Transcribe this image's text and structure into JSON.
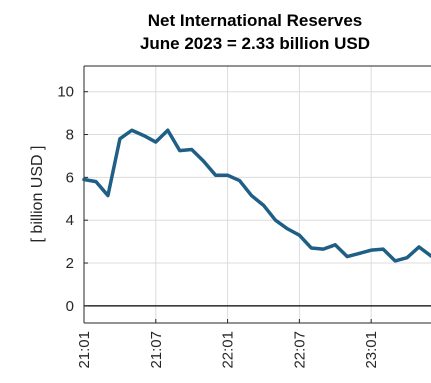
{
  "chart_data": {
    "type": "line",
    "title": "Net International Reserves",
    "subtitle": "June 2023 = 2.33 billion USD",
    "xlabel": "",
    "ylabel": "[ billion USD ]",
    "ylim": [
      -0.8,
      11.2
    ],
    "yticks": [
      0,
      2,
      4,
      6,
      8,
      10
    ],
    "x_tick_labels": [
      "21:01",
      "21:07",
      "22:01",
      "22:07",
      "23:01"
    ],
    "x_tick_indices": [
      0,
      6,
      12,
      18,
      24
    ],
    "x_range_index": [
      0,
      29
    ],
    "grid": true,
    "zero_line": true,
    "line_color": "#1f5f86",
    "series": [
      {
        "x": [
          "21:01",
          "21:02",
          "21:03",
          "21:04",
          "21:05",
          "21:06",
          "21:07",
          "21:08",
          "21:09",
          "21:10",
          "21:11",
          "21:12",
          "22:01",
          "22:02",
          "22:03",
          "22:04",
          "22:05",
          "22:06",
          "22:07",
          "22:08",
          "22:09",
          "22:10",
          "22:11",
          "22:12",
          "23:01",
          "23:02",
          "23:03",
          "23:04",
          "23:05",
          "23:06"
        ],
        "values": [
          5.9,
          5.8,
          5.15,
          7.8,
          8.2,
          7.95,
          7.65,
          8.2,
          7.25,
          7.3,
          6.75,
          6.1,
          6.1,
          5.85,
          5.15,
          4.7,
          4.0,
          3.6,
          3.3,
          2.7,
          2.65,
          2.85,
          2.3,
          2.45,
          2.6,
          2.65,
          2.1,
          2.25,
          2.75,
          2.33
        ]
      }
    ]
  }
}
